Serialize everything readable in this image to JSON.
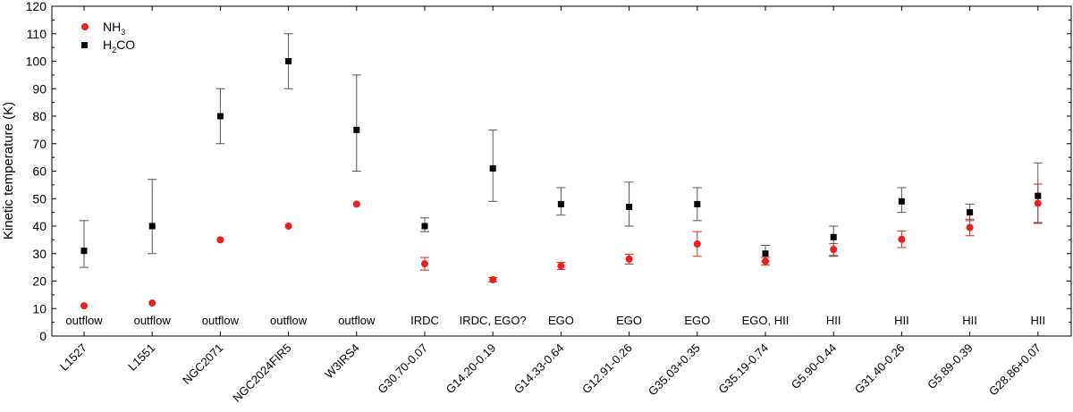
{
  "chart_data": {
    "type": "scatter",
    "ylabel": "Kinetic temperature (K)",
    "ylim": [
      0,
      120
    ],
    "yticks": [
      0,
      10,
      20,
      30,
      40,
      50,
      60,
      70,
      80,
      90,
      100,
      110,
      120
    ],
    "categories": [
      "L1527",
      "L1551",
      "NGC2071",
      "NGC2024FIR5",
      "W3IRS4",
      "G30.70-0.07",
      "G14.20-0.19",
      "G14.33-0.64",
      "G12.91-0.26",
      "G35.03+0.35",
      "G35.19-0.74",
      "G5.90-0.44",
      "G31.40-0.26",
      "G5.89-0.39",
      "G28.86+0.07"
    ],
    "source_types": [
      "outflow",
      "outflow",
      "outflow",
      "outflow",
      "outflow",
      "IRDC",
      "IRDC, EGO?",
      "EGO",
      "EGO",
      "EGO",
      "EGO, HII",
      "HII",
      "HII",
      "HII",
      "HII"
    ],
    "legend_position": "top-left",
    "series": [
      {
        "name": "NH3",
        "name_main": "NH",
        "name_sub": "3",
        "marker": "circle",
        "color": "#e8211d",
        "values": [
          11,
          12,
          35,
          40,
          48,
          26.3,
          20.5,
          25.5,
          28,
          33.5,
          27.2,
          31.5,
          35.2,
          39.5,
          48.3
        ],
        "err_low": [
          null,
          null,
          null,
          null,
          null,
          2.3,
          0.8,
          1.3,
          1.8,
          4.5,
          1.4,
          2.2,
          3.0,
          3.0,
          7.0
        ],
        "err_high": [
          null,
          null,
          null,
          null,
          null,
          2.3,
          0.8,
          1.3,
          1.8,
          4.5,
          1.4,
          2.2,
          3.0,
          3.0,
          7.0
        ]
      },
      {
        "name": "H2CO",
        "name_main_a": "H",
        "name_sub": "2",
        "name_main_b": "CO",
        "marker": "square",
        "color": "#000000",
        "values": [
          31,
          40,
          80,
          100,
          75,
          40,
          61,
          48,
          47,
          48,
          30,
          36,
          49,
          45,
          51
        ],
        "err_low": [
          6,
          10,
          10,
          10,
          15,
          2,
          12,
          4,
          7,
          6,
          3,
          7,
          4,
          3,
          10
        ],
        "err_high": [
          11,
          17,
          10,
          10,
          20,
          3,
          14,
          6,
          9,
          6,
          3,
          4,
          5,
          3,
          12
        ]
      }
    ]
  }
}
